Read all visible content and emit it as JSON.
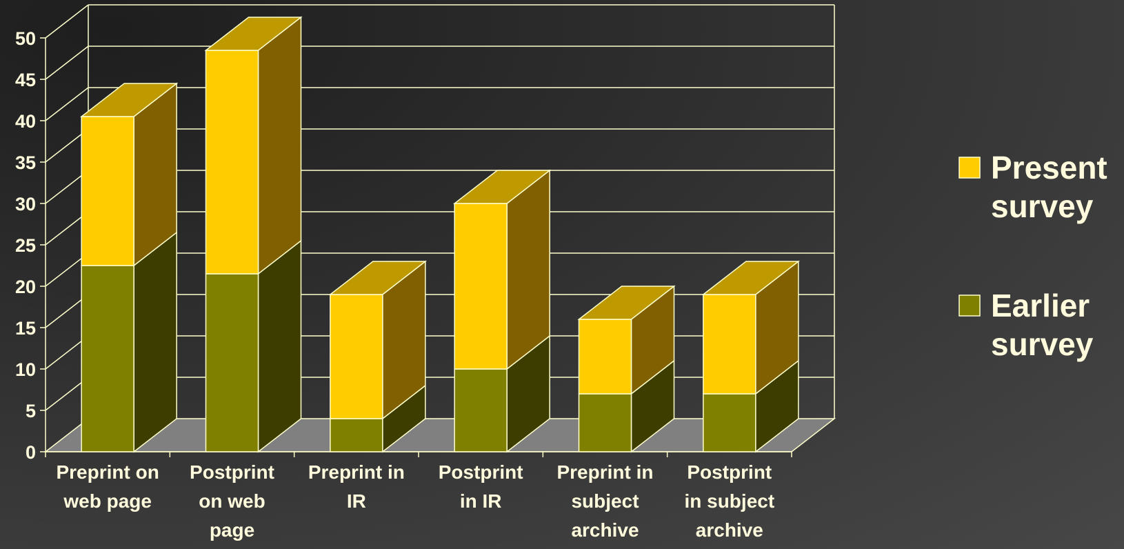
{
  "chart_data": {
    "type": "bar",
    "stacked": true,
    "three_d": true,
    "categories": [
      [
        "Preprint on",
        "web page"
      ],
      [
        "Postprint",
        "on web",
        "page"
      ],
      [
        "Preprint in",
        "IR"
      ],
      [
        "Postprint",
        "in IR"
      ],
      [
        "Preprint in",
        "subject",
        "archive"
      ],
      [
        "Postprint",
        "in subject",
        "archive"
      ]
    ],
    "series": [
      {
        "name": "Earlier survey",
        "color": "#808000",
        "values": [
          22.5,
          21.5,
          4,
          10,
          7,
          7
        ]
      },
      {
        "name": "Present survey",
        "color": "#ffcc00",
        "values": [
          18,
          27,
          15,
          20,
          9,
          12
        ]
      }
    ],
    "ylim": [
      0,
      50
    ],
    "yticks": [
      0,
      5,
      10,
      15,
      20,
      25,
      30,
      35,
      40,
      45,
      50
    ],
    "grid": true,
    "legend_position": "right",
    "legend": [
      {
        "lines": [
          "Present",
          "survey"
        ],
        "color": "#ffcc00"
      },
      {
        "lines": [
          "Earlier",
          "survey"
        ],
        "color": "#808000"
      }
    ],
    "colors": {
      "axis": "#ffffcc",
      "floor": "#808080",
      "earlier_side": "#3d3d00",
      "present_side": "#806000",
      "present_top": "#bf9900"
    }
  }
}
